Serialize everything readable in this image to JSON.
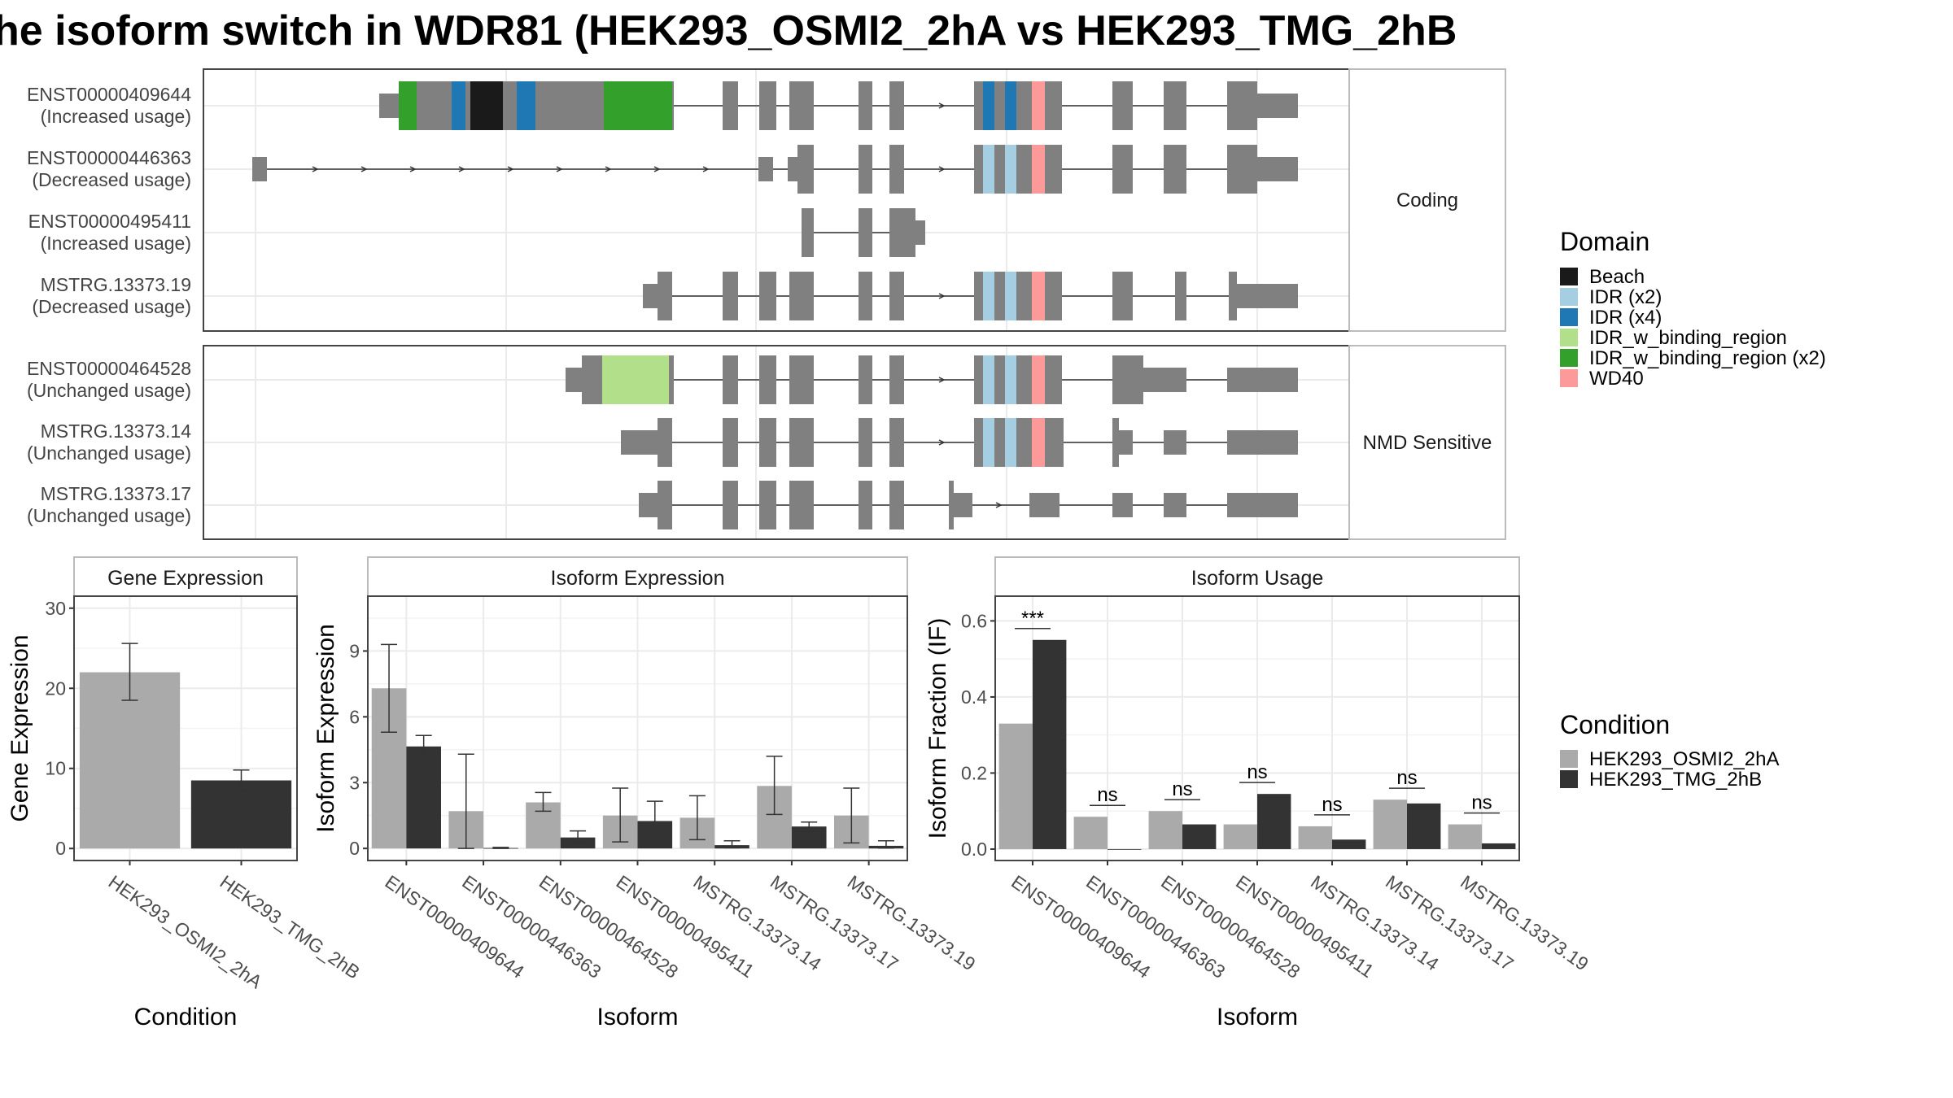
{
  "title": "he isoform switch in WDR81 (HEK293_OSMI2_2hA vs HEK293_TMG_2hB",
  "colors": {
    "exon": "#808080",
    "intron": "#333333",
    "panel_border": "#444444",
    "grid": "#ebebeb",
    "condition_a": "#aaaaaa",
    "condition_b": "#333333",
    "domains": {
      "Beach": "#1a1a1a",
      "IDR (x2)": "#a6cee3",
      "IDR (x4)": "#1f78b4",
      "IDR_w_binding_region": "#b2df8a",
      "IDR_w_binding_region (x2)": "#33a02c",
      "WD40": "#fb9a99"
    }
  },
  "facets": [
    "Coding",
    "NMD Sensitive"
  ],
  "transcripts": [
    {
      "id": "ENST00000409644",
      "usage": "(Increased usage)",
      "facet": "Coding"
    },
    {
      "id": "ENST00000446363",
      "usage": "(Decreased usage)",
      "facet": "Coding"
    },
    {
      "id": "ENST00000495411",
      "usage": "(Increased usage)",
      "facet": "Coding"
    },
    {
      "id": "MSTRG.13373.19",
      "usage": "(Decreased usage)",
      "facet": "Coding"
    },
    {
      "id": "ENST00000464528",
      "usage": "(Unchanged usage)",
      "facet": "NMD Sensitive"
    },
    {
      "id": "MSTRG.13373.14",
      "usage": "(Unchanged usage)",
      "facet": "NMD Sensitive"
    },
    {
      "id": "MSTRG.13373.17",
      "usage": "(Unchanged usage)",
      "facet": "NMD Sensitive"
    }
  ],
  "legends": {
    "domain_title": "Domain",
    "domain_items": [
      "Beach",
      "IDR (x2)",
      "IDR (x4)",
      "IDR_w_binding_region",
      "IDR_w_binding_region (x2)",
      "WD40"
    ],
    "condition_title": "Condition",
    "condition_items": [
      "HEK293_OSMI2_2hA",
      "HEK293_TMG_2hB"
    ]
  },
  "chart_data": [
    {
      "type": "bar",
      "title": "Gene Expression",
      "xlabel": "Condition",
      "ylabel": "Gene Expression",
      "categories": [
        "HEK293_OSMI2_2hA",
        "HEK293_TMG_2hB"
      ],
      "values": [
        22.0,
        8.5
      ],
      "errors": [
        [
          18.5,
          25.6
        ],
        [
          7.2,
          9.8
        ]
      ],
      "ylim": [
        -1.5,
        31.5
      ],
      "yticks": [
        0,
        10,
        20,
        30
      ],
      "grid": true
    },
    {
      "type": "bar",
      "title": "Isoform Expression",
      "xlabel": "Isoform",
      "ylabel": "Isoform Expression",
      "categories": [
        "ENST00000409644",
        "ENST00000446363",
        "ENST00000464528",
        "ENST00000495411",
        "MSTRG.13373.14",
        "MSTRG.13373.17",
        "MSTRG.13373.19"
      ],
      "series": [
        {
          "name": "HEK293_OSMI2_2hA",
          "values": [
            7.3,
            1.7,
            2.1,
            1.5,
            1.4,
            2.85,
            1.5
          ],
          "errors": [
            [
              5.3,
              9.3
            ],
            [
              0,
              4.3
            ],
            [
              1.7,
              2.55
            ],
            [
              0.3,
              2.75
            ],
            [
              0.4,
              2.4
            ],
            [
              1.55,
              4.2
            ],
            [
              0.25,
              2.75
            ]
          ]
        },
        {
          "name": "HEK293_TMG_2hB",
          "values": [
            4.65,
            0.02,
            0.5,
            1.25,
            0.15,
            1.0,
            0.12
          ],
          "errors": [
            [
              4.15,
              5.15
            ],
            [
              0,
              0.05
            ],
            [
              0.25,
              0.8
            ],
            [
              0.35,
              2.15
            ],
            [
              0.03,
              0.35
            ],
            [
              0.8,
              1.2
            ],
            [
              0.02,
              0.35
            ]
          ]
        }
      ],
      "ylim": [
        -0.55,
        11.5
      ],
      "yticks": [
        0,
        3,
        6,
        9
      ],
      "grid": true
    },
    {
      "type": "bar",
      "title": "Isoform Usage",
      "xlabel": "Isoform",
      "ylabel": "Isoform Fraction (IF)",
      "categories": [
        "ENST00000409644",
        "ENST00000446363",
        "ENST00000464528",
        "ENST00000495411",
        "MSTRG.13373.14",
        "MSTRG.13373.17",
        "MSTRG.13373.19"
      ],
      "series": [
        {
          "name": "HEK293_OSMI2_2hA",
          "values": [
            0.33,
            0.085,
            0.1,
            0.065,
            0.06,
            0.13,
            0.065
          ]
        },
        {
          "name": "HEK293_TMG_2hB",
          "values": [
            0.55,
            0.0,
            0.065,
            0.145,
            0.025,
            0.12,
            0.015
          ]
        }
      ],
      "significance": [
        "***",
        "ns",
        "ns",
        "ns",
        "ns",
        "ns",
        "ns"
      ],
      "ylim": [
        -0.03,
        0.665
      ],
      "yticks": [
        0.0,
        0.2,
        0.4,
        0.6
      ],
      "ytick_labels": [
        "0.0",
        "0.2",
        "0.4",
        "0.6"
      ],
      "grid": true
    }
  ]
}
